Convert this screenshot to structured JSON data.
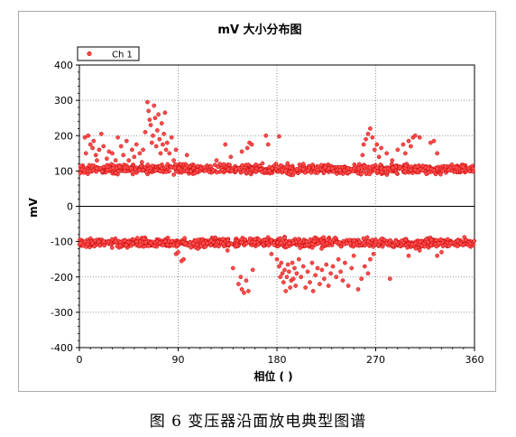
{
  "caption": "图 6 变压器沿面放电典型图谱",
  "chart_data": {
    "type": "scatter",
    "title": "mV 大小分布图",
    "xlabel": "相位 ( )",
    "ylabel": "mV",
    "xlim": [
      0,
      360
    ],
    "ylim": [
      -400,
      400
    ],
    "xticks": [
      0,
      90,
      180,
      270,
      360
    ],
    "yticks": [
      -400,
      -300,
      -200,
      -100,
      0,
      100,
      200,
      300,
      400
    ],
    "grid": true,
    "legend": {
      "position": "top-left",
      "entries": [
        "Ch 1"
      ]
    },
    "colors": {
      "marker_fill": "#ff4d4d",
      "marker_stroke": "#c00000"
    },
    "series": [
      {
        "name": "Ch 1",
        "band_positive": {
          "center": 105,
          "spread": 8
        },
        "band_negative": {
          "center": -103,
          "spread": 8
        },
        "points": [
          [
            5,
            195
          ],
          [
            6,
            150
          ],
          [
            8,
            200
          ],
          [
            10,
            175
          ],
          [
            12,
            165
          ],
          [
            13,
            185
          ],
          [
            15,
            145
          ],
          [
            16,
            130
          ],
          [
            18,
            160
          ],
          [
            20,
            205
          ],
          [
            22,
            170
          ],
          [
            25,
            135
          ],
          [
            27,
            155
          ],
          [
            30,
            150
          ],
          [
            33,
            130
          ],
          [
            35,
            195
          ],
          [
            38,
            170
          ],
          [
            40,
            145
          ],
          [
            43,
            185
          ],
          [
            45,
            130
          ],
          [
            48,
            160
          ],
          [
            50,
            140
          ],
          [
            52,
            175
          ],
          [
            55,
            150
          ],
          [
            57,
            125
          ],
          [
            58,
            160
          ],
          [
            60,
            210
          ],
          [
            62,
            295
          ],
          [
            63,
            270
          ],
          [
            64,
            245
          ],
          [
            65,
            230
          ],
          [
            66,
            180
          ],
          [
            67,
            200
          ],
          [
            68,
            285
          ],
          [
            69,
            250
          ],
          [
            70,
            170
          ],
          [
            71,
            215
          ],
          [
            72,
            260
          ],
          [
            73,
            190
          ],
          [
            74,
            150
          ],
          [
            75,
            235
          ],
          [
            76,
            175
          ],
          [
            77,
            205
          ],
          [
            78,
            265
          ],
          [
            79,
            160
          ],
          [
            80,
            180
          ],
          [
            82,
            150
          ],
          [
            84,
            195
          ],
          [
            86,
            130
          ],
          [
            88,
            160
          ],
          [
            98,
            145
          ],
          [
            125,
            130
          ],
          [
            128,
            120
          ],
          [
            133,
            175
          ],
          [
            138,
            140
          ],
          [
            148,
            155
          ],
          [
            153,
            165
          ],
          [
            155,
            180
          ],
          [
            157,
            175
          ],
          [
            170,
            200
          ],
          [
            172,
            175
          ],
          [
            182,
            198
          ],
          [
            258,
            145
          ],
          [
            259,
            175
          ],
          [
            261,
            190
          ],
          [
            263,
            205
          ],
          [
            265,
            220
          ],
          [
            267,
            195
          ],
          [
            269,
            160
          ],
          [
            271,
            175
          ],
          [
            273,
            140
          ],
          [
            275,
            165
          ],
          [
            280,
            150
          ],
          [
            285,
            130
          ],
          [
            290,
            160
          ],
          [
            295,
            175
          ],
          [
            297,
            150
          ],
          [
            300,
            185
          ],
          [
            302,
            170
          ],
          [
            304,
            195
          ],
          [
            306,
            200
          ],
          [
            310,
            195
          ],
          [
            320,
            180
          ],
          [
            323,
            185
          ],
          [
            326,
            150
          ],
          [
            88,
            -135
          ],
          [
            90,
            -130
          ],
          [
            93,
            -155
          ],
          [
            95,
            -150
          ],
          [
            108,
            -120
          ],
          [
            135,
            -125
          ],
          [
            140,
            -175
          ],
          [
            145,
            -220
          ],
          [
            147,
            -200
          ],
          [
            148,
            -235
          ],
          [
            150,
            -245
          ],
          [
            152,
            -210
          ],
          [
            154,
            -240
          ],
          [
            158,
            -180
          ],
          [
            175,
            -135
          ],
          [
            180,
            -150
          ],
          [
            182,
            -170
          ],
          [
            183,
            -200
          ],
          [
            184,
            -160
          ],
          [
            185,
            -190
          ],
          [
            186,
            -215
          ],
          [
            187,
            -180
          ],
          [
            188,
            -240
          ],
          [
            189,
            -200
          ],
          [
            190,
            -165
          ],
          [
            191,
            -185
          ],
          [
            192,
            -230
          ],
          [
            193,
            -210
          ],
          [
            194,
            -160
          ],
          [
            195,
            -205
          ],
          [
            196,
            -175
          ],
          [
            197,
            -225
          ],
          [
            198,
            -190
          ],
          [
            200,
            -150
          ],
          [
            202,
            -200
          ],
          [
            204,
            -170
          ],
          [
            206,
            -230
          ],
          [
            208,
            -185
          ],
          [
            210,
            -215
          ],
          [
            212,
            -160
          ],
          [
            213,
            -240
          ],
          [
            215,
            -195
          ],
          [
            217,
            -175
          ],
          [
            219,
            -220
          ],
          [
            221,
            -180
          ],
          [
            223,
            -205
          ],
          [
            225,
            -165
          ],
          [
            227,
            -225
          ],
          [
            229,
            -190
          ],
          [
            231,
            -170
          ],
          [
            234,
            -200
          ],
          [
            236,
            -150
          ],
          [
            238,
            -185
          ],
          [
            240,
            -210
          ],
          [
            242,
            -160
          ],
          [
            245,
            -225
          ],
          [
            248,
            -175
          ],
          [
            250,
            -140
          ],
          [
            254,
            -235
          ],
          [
            257,
            -205
          ],
          [
            260,
            -170
          ],
          [
            263,
            -190
          ],
          [
            265,
            -150
          ],
          [
            268,
            -135
          ],
          [
            283,
            -205
          ],
          [
            300,
            -140
          ],
          [
            310,
            -125
          ],
          [
            326,
            -140
          ],
          [
            330,
            -130
          ]
        ]
      }
    ]
  }
}
